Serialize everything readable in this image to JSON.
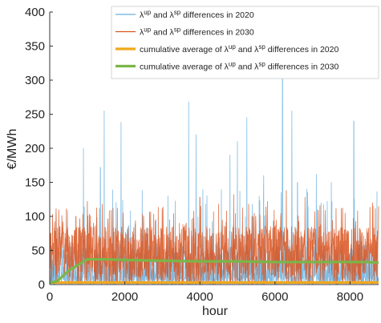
{
  "chart_data": {
    "type": "line",
    "xlabel": "hour",
    "ylabel": "€/MWh",
    "xlim": [
      0,
      8760
    ],
    "ylim": [
      0,
      400
    ],
    "xticks": [
      0,
      2000,
      4000,
      6000,
      8000
    ],
    "yticks": [
      0,
      50,
      100,
      150,
      200,
      250,
      300,
      350,
      400
    ],
    "grid": false,
    "legend": {
      "position": "top-right"
    },
    "series": [
      {
        "name": "λ^up and λ^sp differences in 2020",
        "name_prefix": "λ",
        "name_sup1": "up",
        "name_mid": " and λ",
        "name_sup2": "sp",
        "name_suffix": " differences in 2020",
        "color": "#6ab0de",
        "style": "thin",
        "peaks": [
          [
            900,
            200
          ],
          [
            1350,
            172
          ],
          [
            1450,
            255
          ],
          [
            1900,
            238
          ],
          [
            2150,
            108
          ],
          [
            3150,
            130
          ],
          [
            3700,
            268
          ],
          [
            3900,
            220
          ],
          [
            4150,
            118
          ],
          [
            4800,
            190
          ],
          [
            5000,
            210
          ],
          [
            5250,
            245
          ],
          [
            5400,
            118
          ],
          [
            5700,
            160
          ],
          [
            6200,
            320
          ],
          [
            6450,
            255
          ],
          [
            6600,
            150
          ],
          [
            6850,
            140
          ],
          [
            7100,
            162
          ],
          [
            7500,
            150
          ],
          [
            8100,
            240
          ],
          [
            8500,
            60
          ],
          [
            8700,
            45
          ]
        ]
      },
      {
        "name": "λ^up and λ^sp differences in 2030",
        "name_prefix": "λ",
        "name_sup1": "up",
        "name_mid": " and λ",
        "name_sup2": "sp",
        "name_suffix": " differences in 2030",
        "color": "#d9541e",
        "style": "thin",
        "peaks": [
          [
            350,
            92
          ],
          [
            700,
            100
          ],
          [
            1000,
            122
          ],
          [
            1400,
            118
          ],
          [
            1800,
            112
          ],
          [
            2500,
            100
          ],
          [
            3300,
            104
          ],
          [
            4000,
            128
          ],
          [
            4500,
            118
          ],
          [
            4900,
            132
          ],
          [
            5300,
            118
          ],
          [
            5800,
            122
          ],
          [
            6300,
            138
          ],
          [
            6800,
            128
          ],
          [
            7200,
            116
          ],
          [
            7800,
            112
          ],
          [
            8200,
            108
          ],
          [
            8600,
            120
          ]
        ]
      },
      {
        "name": "cumulative average of λ^up and λ^sp differences in 2020",
        "name_prefix": "cumulative average of λ",
        "name_sup1": "up",
        "name_mid": " and λ",
        "name_sup2": "sp",
        "name_suffix": " differences in 2020",
        "color": "#f0a81c",
        "style": "thick",
        "x": [
          0,
          50,
          200,
          500,
          1000,
          2000,
          3000,
          4000,
          5000,
          6000,
          7000,
          8000,
          8760
        ],
        "y": [
          3,
          3,
          3,
          3,
          3,
          3,
          3,
          3,
          3,
          3,
          3,
          3,
          3
        ]
      },
      {
        "name": "cumulative average of λ^up and λ^sp differences in 2030",
        "name_prefix": "cumulative average of λ",
        "name_sup1": "up",
        "name_mid": " and λ",
        "name_sup2": "sp",
        "name_suffix": " differences in 2030",
        "color": "#7ab648",
        "style": "thick",
        "x": [
          0,
          50,
          200,
          500,
          1000,
          1500,
          2000,
          3000,
          4000,
          5000,
          6000,
          7000,
          8000,
          8400,
          8760
        ],
        "y": [
          3,
          3,
          5,
          20,
          37,
          37,
          36,
          35,
          34,
          34,
          33,
          33,
          33,
          33,
          32
        ]
      }
    ]
  }
}
